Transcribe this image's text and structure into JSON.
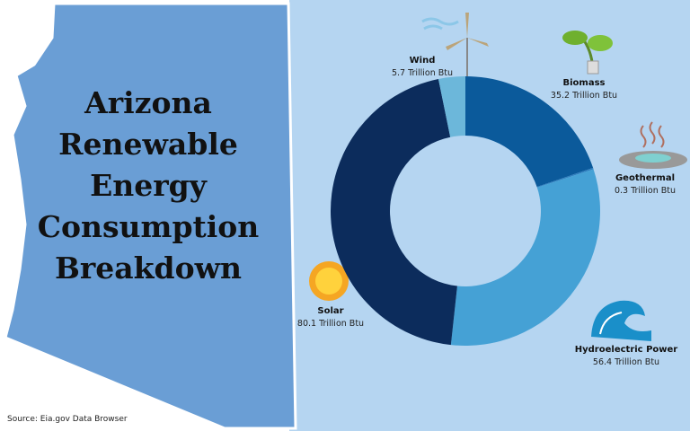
{
  "chart_data": {
    "type": "donut",
    "title": "Arizona Renewable Energy Consumption Breakdown",
    "categories": [
      "Biomass",
      "Geothermal",
      "Hydroelectric Power",
      "Solar",
      "Wind"
    ],
    "values": [
      35.2,
      0.3,
      56.4,
      80.1,
      5.7
    ],
    "value_labels": [
      "35.2 Trillion Btu",
      "0.3 Trillion Btu",
      "56.4 Trillion Btu",
      "80.1 Trillion Btu",
      "5.7 Trillion Btu"
    ],
    "colors": [
      "#0b5a9b",
      "#2f7fbf",
      "#45a1d5",
      "#0c2c5c",
      "#6cb7da"
    ],
    "source": "Source: Eia.gov Data Browser"
  }
}
